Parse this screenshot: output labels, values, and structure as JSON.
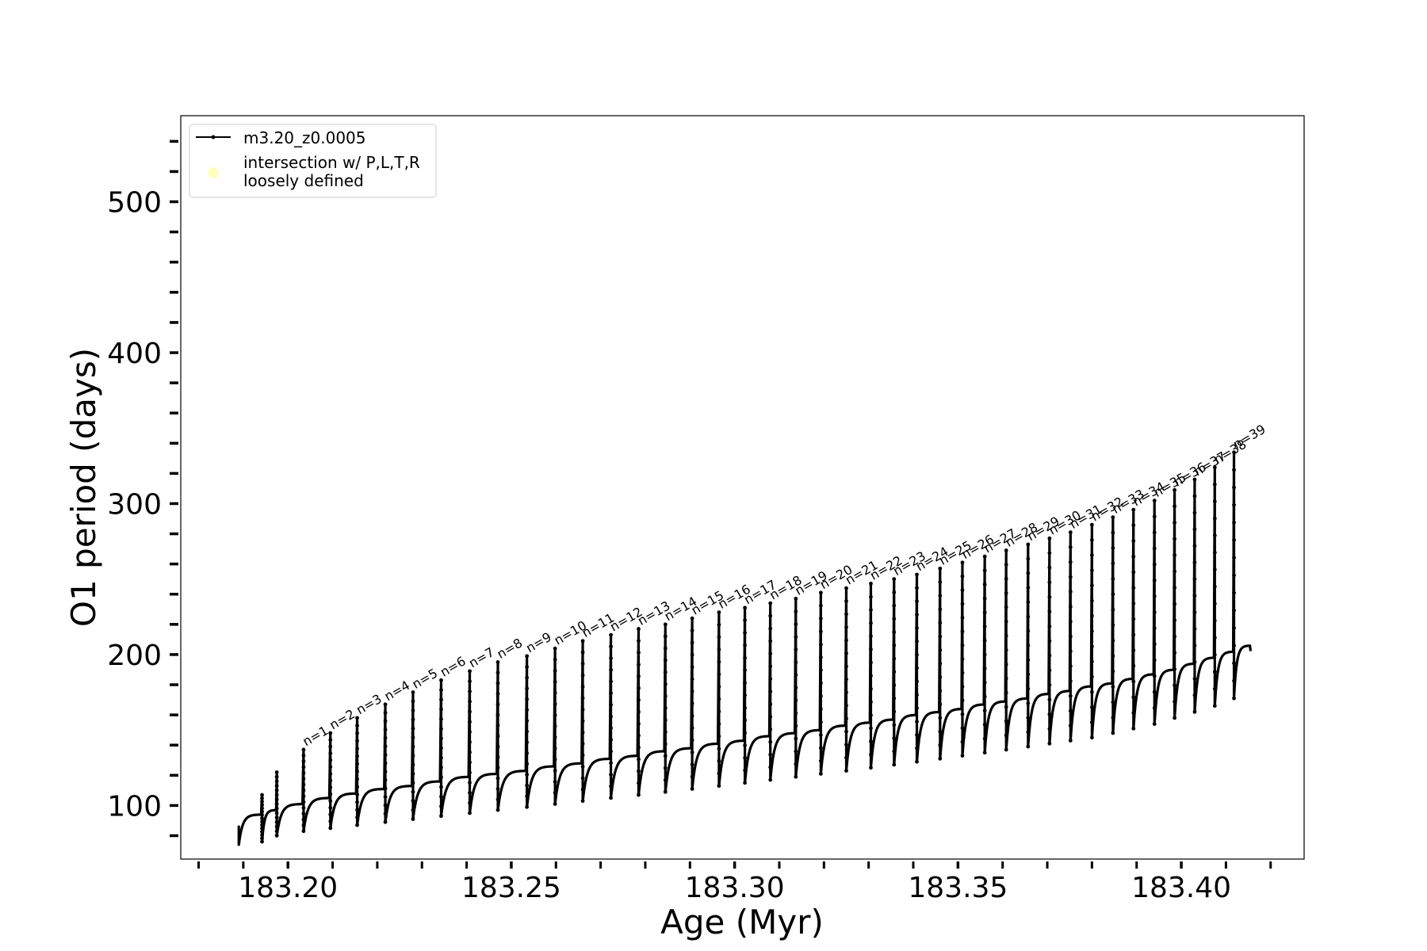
{
  "chart_data": {
    "type": "line",
    "xlabel": "Age (Myr)",
    "ylabel": "O1 period (days)",
    "xlim": [
      183.176,
      183.4275
    ],
    "ylim": [
      64.5,
      557
    ],
    "x_ticks": [
      183.2,
      183.25,
      183.3,
      183.35,
      183.4
    ],
    "x_tick_labels": [
      "183.20",
      "183.25",
      "183.30",
      "183.35",
      "183.40"
    ],
    "y_ticks": [
      100,
      200,
      300,
      400,
      500
    ],
    "y_tick_labels": [
      "100",
      "200",
      "300",
      "400",
      "500"
    ],
    "grid": false,
    "legend": {
      "placement": "upper-left",
      "entries": [
        {
          "label": "m3.20_z0.0005",
          "marker": "line-dot",
          "color": "#000000"
        },
        {
          "label_lines": [
            "intersection w/ P,L,T,R",
            "loosely defined"
          ],
          "marker": "circle",
          "color": "#ffffc0"
        }
      ]
    },
    "series": [
      {
        "name": "m3.20_z0.0005",
        "color": "#000000",
        "start": {
          "age": 183.189,
          "period": 86,
          "low": 74,
          "plateau": 94
        },
        "pulses": [
          {
            "age": 183.1942,
            "peak": 107,
            "low": 76,
            "plateau": 97
          },
          {
            "age": 183.1975,
            "peak": 122,
            "low": 80,
            "plateau": 101
          },
          {
            "age": 183.2035,
            "peak": 137,
            "low": 83,
            "plateau": 105
          },
          {
            "age": 183.2095,
            "peak": 148,
            "low": 85,
            "plateau": 108
          },
          {
            "age": 183.2155,
            "peak": 158,
            "low": 87,
            "plateau": 111
          },
          {
            "age": 183.2218,
            "peak": 167,
            "low": 89,
            "plateau": 113
          },
          {
            "age": 183.228,
            "peak": 175,
            "low": 91,
            "plateau": 116
          },
          {
            "age": 183.2343,
            "peak": 183,
            "low": 93,
            "plateau": 119
          },
          {
            "age": 183.2407,
            "peak": 189,
            "low": 95,
            "plateau": 121
          },
          {
            "age": 183.247,
            "peak": 195,
            "low": 97,
            "plateau": 123
          },
          {
            "age": 183.2535,
            "peak": 199,
            "low": 99,
            "plateau": 126
          },
          {
            "age": 183.2598,
            "peak": 204,
            "low": 101,
            "plateau": 128
          },
          {
            "age": 183.266,
            "peak": 209,
            "low": 103,
            "plateau": 131
          },
          {
            "age": 183.2723,
            "peak": 213,
            "low": 105,
            "plateau": 133
          },
          {
            "age": 183.2785,
            "peak": 217,
            "low": 107,
            "plateau": 136
          },
          {
            "age": 183.2845,
            "peak": 220,
            "low": 109,
            "plateau": 138
          },
          {
            "age": 183.2905,
            "peak": 224,
            "low": 111,
            "plateau": 141
          },
          {
            "age": 183.2965,
            "peak": 228,
            "low": 113,
            "plateau": 143
          },
          {
            "age": 183.3023,
            "peak": 231,
            "low": 115,
            "plateau": 146
          },
          {
            "age": 183.308,
            "peak": 234,
            "low": 117,
            "plateau": 148
          },
          {
            "age": 183.3137,
            "peak": 237,
            "low": 119,
            "plateau": 150
          },
          {
            "age": 183.3193,
            "peak": 241,
            "low": 121,
            "plateau": 153
          },
          {
            "age": 183.325,
            "peak": 244,
            "low": 123,
            "plateau": 155
          },
          {
            "age": 183.3305,
            "peak": 247,
            "low": 125,
            "plateau": 157
          },
          {
            "age": 183.3357,
            "peak": 250,
            "low": 127,
            "plateau": 160
          },
          {
            "age": 183.3408,
            "peak": 253,
            "low": 129,
            "plateau": 162
          },
          {
            "age": 183.346,
            "peak": 257,
            "low": 131,
            "plateau": 164
          },
          {
            "age": 183.351,
            "peak": 261,
            "low": 133,
            "plateau": 167
          },
          {
            "age": 183.356,
            "peak": 265,
            "low": 135,
            "plateau": 169
          },
          {
            "age": 183.3608,
            "peak": 269,
            "low": 137,
            "plateau": 171
          },
          {
            "age": 183.3657,
            "peak": 273,
            "low": 139,
            "plateau": 174
          },
          {
            "age": 183.3705,
            "peak": 277,
            "low": 141,
            "plateau": 176
          },
          {
            "age": 183.3752,
            "peak": 281,
            "low": 143,
            "plateau": 179
          },
          {
            "age": 183.38,
            "peak": 286,
            "low": 145,
            "plateau": 181
          },
          {
            "age": 183.3847,
            "peak": 291,
            "low": 148,
            "plateau": 184
          },
          {
            "age": 183.3893,
            "peak": 296,
            "low": 151,
            "plateau": 187
          },
          {
            "age": 183.394,
            "peak": 302,
            "low": 154,
            "plateau": 190
          },
          {
            "age": 183.3985,
            "peak": 309,
            "low": 158,
            "plateau": 194
          },
          {
            "age": 183.403,
            "peak": 316,
            "low": 162,
            "plateau": 198
          },
          {
            "age": 183.4075,
            "peak": 324,
            "low": 166,
            "plateau": 202
          },
          {
            "age": 183.4118,
            "peak": 334,
            "low": 171,
            "plateau": 206
          }
        ],
        "end": {
          "age": 183.4155,
          "period": 203
        }
      }
    ],
    "annotations": [
      {
        "text": "n=1",
        "age": 183.2035,
        "period": 137
      },
      {
        "text": "n=2",
        "age": 183.2095,
        "period": 148
      },
      {
        "text": "n=3",
        "age": 183.2155,
        "period": 158
      },
      {
        "text": "n=4",
        "age": 183.2218,
        "period": 167
      },
      {
        "text": "n=5",
        "age": 183.228,
        "period": 175
      },
      {
        "text": "n=6",
        "age": 183.2343,
        "period": 183
      },
      {
        "text": "n=7",
        "age": 183.2407,
        "period": 189
      },
      {
        "text": "n=8",
        "age": 183.247,
        "period": 195
      },
      {
        "text": "n=9",
        "age": 183.2535,
        "period": 199
      },
      {
        "text": "n=10",
        "age": 183.2598,
        "period": 204
      },
      {
        "text": "n=11",
        "age": 183.266,
        "period": 209
      },
      {
        "text": "n=12",
        "age": 183.2723,
        "period": 213
      },
      {
        "text": "n=13",
        "age": 183.2785,
        "period": 217
      },
      {
        "text": "n=14",
        "age": 183.2845,
        "period": 220
      },
      {
        "text": "n=15",
        "age": 183.2905,
        "period": 224
      },
      {
        "text": "n=16",
        "age": 183.2965,
        "period": 228
      },
      {
        "text": "n=17",
        "age": 183.3023,
        "period": 231
      },
      {
        "text": "n=18",
        "age": 183.308,
        "period": 234
      },
      {
        "text": "n=19",
        "age": 183.3137,
        "period": 237
      },
      {
        "text": "n=20",
        "age": 183.3193,
        "period": 241
      },
      {
        "text": "n=21",
        "age": 183.325,
        "period": 244
      },
      {
        "text": "n=22",
        "age": 183.3305,
        "period": 247
      },
      {
        "text": "n=23",
        "age": 183.3357,
        "period": 250
      },
      {
        "text": "n=24",
        "age": 183.3408,
        "period": 253
      },
      {
        "text": "n=25",
        "age": 183.346,
        "period": 257
      },
      {
        "text": "n=26",
        "age": 183.351,
        "period": 261
      },
      {
        "text": "n=27",
        "age": 183.356,
        "period": 265
      },
      {
        "text": "n=28",
        "age": 183.3608,
        "period": 269
      },
      {
        "text": "n=29",
        "age": 183.3657,
        "period": 273
      },
      {
        "text": "n=30",
        "age": 183.3705,
        "period": 277
      },
      {
        "text": "n=31",
        "age": 183.3752,
        "period": 281
      },
      {
        "text": "n=32",
        "age": 183.38,
        "period": 286
      },
      {
        "text": "n=33",
        "age": 183.3847,
        "period": 291
      },
      {
        "text": "n=34",
        "age": 183.3893,
        "period": 296
      },
      {
        "text": "n=35",
        "age": 183.394,
        "period": 302
      },
      {
        "text": "n=36",
        "age": 183.3985,
        "period": 309
      },
      {
        "text": "n=37",
        "age": 183.403,
        "period": 316
      },
      {
        "text": "n=38",
        "age": 183.4075,
        "period": 324
      },
      {
        "text": "n=39",
        "age": 183.4118,
        "period": 334
      }
    ]
  }
}
